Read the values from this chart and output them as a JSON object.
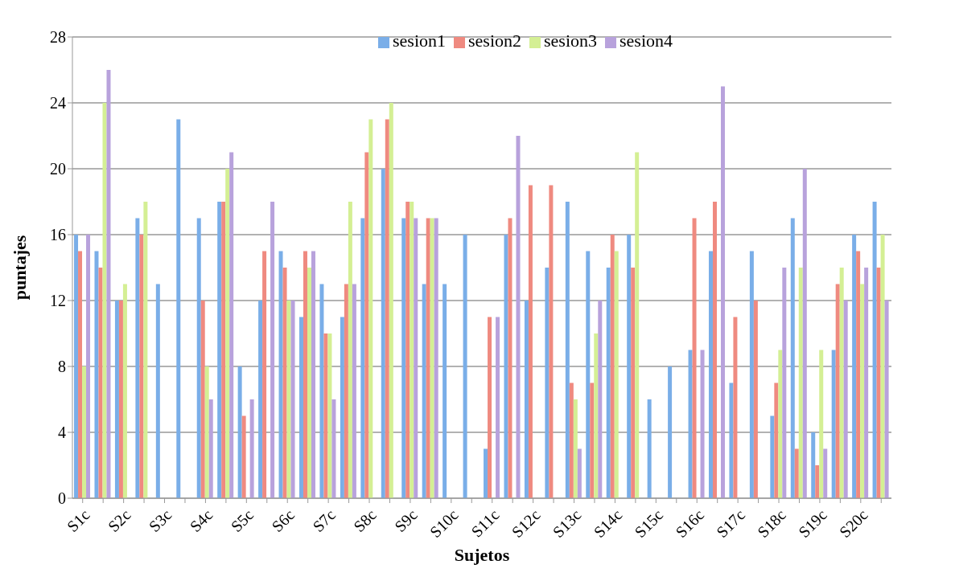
{
  "chart_data": {
    "type": "bar",
    "xlabel": "Sujetos",
    "ylabel": "puntajes",
    "categories": [
      "S1c",
      null,
      "S2c",
      null,
      "S3c",
      null,
      "S4c",
      null,
      "S5c",
      null,
      "S6c",
      null,
      "S7c",
      null,
      "S8c",
      null,
      "S9c",
      null,
      "S10c",
      null,
      "S11c",
      null,
      "S12c",
      null,
      "S13c",
      null,
      "S14c",
      null,
      "S15c",
      null,
      "S16c",
      null,
      "S17c",
      null,
      "S18c",
      null,
      "S19c",
      null,
      "S20c",
      null
    ],
    "series": [
      {
        "name": "sesion1",
        "color": "#7aaee8",
        "values": [
          16,
          15,
          12,
          17,
          13,
          23,
          17,
          18,
          8,
          12,
          15,
          11,
          13,
          11,
          17,
          20,
          17,
          13,
          13,
          16,
          3,
          16,
          12,
          14,
          18,
          15,
          14,
          16,
          6,
          8,
          9,
          15,
          7,
          15,
          5,
          17,
          4,
          9,
          16,
          18
        ]
      },
      {
        "name": "sesion2",
        "color": "#ef8a80",
        "values": [
          15,
          14,
          12,
          16,
          null,
          null,
          12,
          18,
          5,
          15,
          14,
          15,
          10,
          13,
          21,
          23,
          18,
          17,
          null,
          null,
          11,
          17,
          19,
          19,
          7,
          7,
          16,
          14,
          null,
          null,
          17,
          18,
          11,
          12,
          7,
          3,
          2,
          13,
          15,
          14
        ]
      },
      {
        "name": "sesion3",
        "color": "#d4ef94",
        "values": [
          8,
          24,
          13,
          18,
          null,
          null,
          8,
          20,
          null,
          null,
          12,
          14,
          10,
          18,
          23,
          24,
          18,
          17,
          null,
          null,
          null,
          null,
          null,
          null,
          6,
          10,
          15,
          21,
          null,
          null,
          null,
          null,
          null,
          null,
          9,
          14,
          9,
          14,
          13,
          16
        ]
      },
      {
        "name": "sesion4",
        "color": "#b8a2dc",
        "values": [
          16,
          26,
          null,
          null,
          null,
          null,
          6,
          21,
          6,
          18,
          12,
          15,
          6,
          13,
          null,
          null,
          17,
          17,
          null,
          null,
          11,
          22,
          null,
          null,
          3,
          12,
          null,
          null,
          null,
          null,
          9,
          25,
          null,
          null,
          14,
          20,
          3,
          12,
          14,
          12
        ]
      }
    ],
    "ylim": [
      0,
      28
    ],
    "yticks": [
      0,
      4,
      8,
      12,
      16,
      20,
      24,
      28
    ],
    "grid": "y",
    "legend": "top"
  }
}
